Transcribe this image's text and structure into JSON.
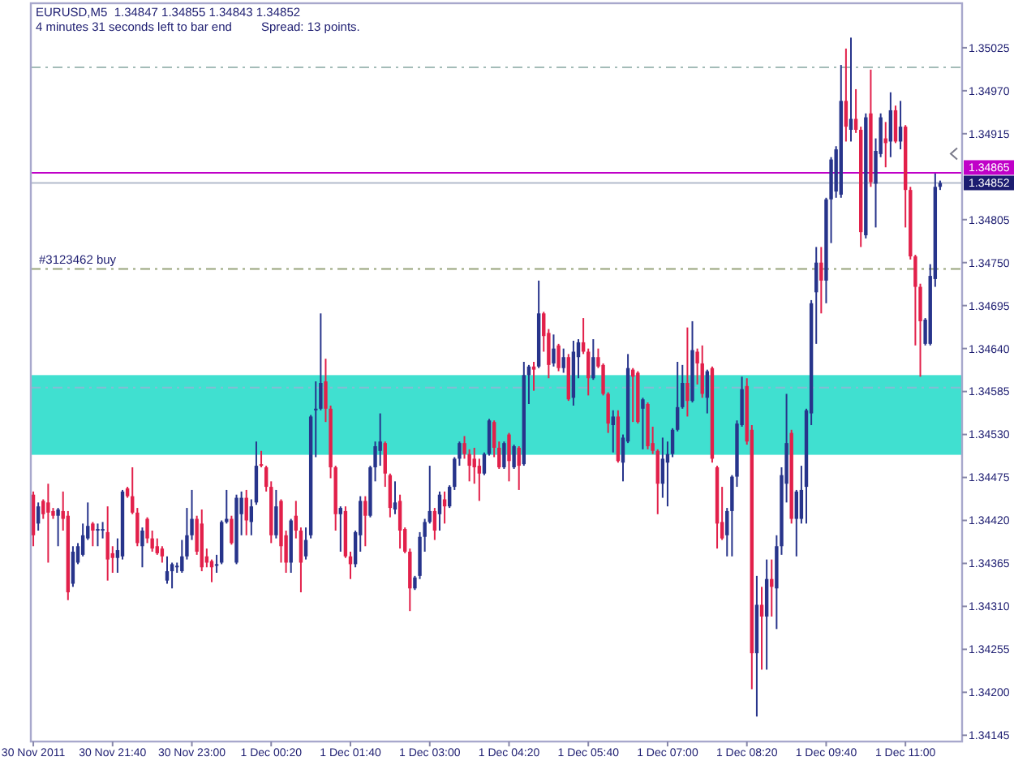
{
  "chart_data": {
    "type": "candlestick",
    "title": "EURUSD,M5  1.34847 1.34855 1.34843 1.34852",
    "annotations": [
      "4 minutes 31 seconds left to bar end",
      "Spread: 13 points."
    ],
    "categories": [
      "30 Nov 2011",
      null,
      null,
      null,
      null,
      null,
      null,
      null,
      null,
      null,
      null,
      null,
      null,
      null,
      null,
      null,
      "30 Nov 21:40",
      null,
      null,
      null,
      null,
      null,
      null,
      null,
      null,
      null,
      null,
      null,
      null,
      null,
      null,
      null,
      "30 Nov 23:00",
      null,
      null,
      null,
      null,
      null,
      null,
      null,
      null,
      null,
      null,
      null,
      null,
      null,
      null,
      null,
      "1 Dec 00:20",
      null,
      null,
      null,
      null,
      null,
      null,
      null,
      null,
      null,
      null,
      null,
      null,
      null,
      null,
      null,
      "1 Dec 01:40",
      null,
      null,
      null,
      null,
      null,
      null,
      null,
      null,
      null,
      null,
      null,
      null,
      null,
      null,
      null,
      "1 Dec 03:00",
      null,
      null,
      null,
      null,
      null,
      null,
      null,
      null,
      null,
      null,
      null,
      null,
      null,
      null,
      null,
      "1 Dec 04:20",
      null,
      null,
      null,
      null,
      null,
      null,
      null,
      null,
      null,
      null,
      null,
      null,
      null,
      null,
      null,
      "1 Dec 05:40",
      null,
      null,
      null,
      null,
      null,
      null,
      null,
      null,
      null,
      null,
      null,
      null,
      null,
      null,
      null,
      "1 Dec 07:00",
      null,
      null,
      null,
      null,
      null,
      null,
      null,
      null,
      null,
      null,
      null,
      null,
      null,
      null,
      null,
      "1 Dec 08:20",
      null,
      null,
      null,
      null,
      null,
      null,
      null,
      null,
      null,
      null,
      null,
      null,
      null,
      null,
      null,
      "1 Dec 09:40",
      null,
      null,
      null,
      null,
      null,
      null,
      null,
      null,
      null,
      null,
      null,
      null,
      null,
      null,
      null,
      "1 Dec 11:00",
      null,
      null,
      null,
      null,
      null,
      null,
      null
    ],
    "ohlc": [
      [
        1.34453,
        1.34457,
        1.34387,
        1.34401
      ],
      [
        1.34416,
        1.34443,
        1.34407,
        1.34438
      ],
      [
        1.34445,
        1.34447,
        1.34422,
        1.34428
      ],
      [
        1.34443,
        1.34467,
        1.34366,
        1.3443
      ],
      [
        1.34432,
        1.34436,
        1.34422,
        1.34426
      ],
      [
        1.34426,
        1.34436,
        1.34387,
        1.34434
      ],
      [
        1.34432,
        1.34457,
        1.34407,
        1.34422
      ],
      [
        1.34426,
        1.34432,
        1.34318,
        1.34328
      ],
      [
        1.34339,
        1.34387,
        1.34335,
        1.3438
      ],
      [
        1.34366,
        1.34391,
        1.34364,
        1.34387
      ],
      [
        1.34376,
        1.34416,
        1.34374,
        1.34401
      ],
      [
        1.34397,
        1.34443,
        1.34395,
        1.34413
      ],
      [
        1.34416,
        1.34418,
        1.34387,
        1.34407
      ],
      [
        1.34407,
        1.34416,
        1.34387,
        1.34409
      ],
      [
        1.34407,
        1.34418,
        1.34397,
        1.34409
      ],
      [
        1.34405,
        1.34438,
        1.34343,
        1.3437
      ],
      [
        1.34378,
        1.34387,
        1.34353,
        1.34372
      ],
      [
        1.34372,
        1.34397,
        1.34353,
        1.34382
      ],
      [
        1.34374,
        1.34459,
        1.3437,
        1.34457
      ],
      [
        1.34461,
        1.34463,
        1.34449,
        1.34451
      ],
      [
        1.34451,
        1.34488,
        1.34428,
        1.3443
      ],
      [
        1.3443,
        1.34436,
        1.34387,
        1.34391
      ],
      [
        1.34387,
        1.34411,
        1.3436,
        1.34407
      ],
      [
        1.34422,
        1.34424,
        1.34391,
        1.34397
      ],
      [
        1.34397,
        1.34407,
        1.3438,
        1.34384
      ],
      [
        1.34387,
        1.34397,
        1.34376,
        1.34378
      ],
      [
        1.34384,
        1.34387,
        1.34366,
        1.34374
      ],
      [
        1.34343,
        1.34374,
        1.34339,
        1.34355
      ],
      [
        1.34355,
        1.34366,
        1.34333,
        1.34364
      ],
      [
        1.3436,
        1.34366,
        1.34353,
        1.34362
      ],
      [
        1.34355,
        1.34395,
        1.34353,
        1.34374
      ],
      [
        1.34374,
        1.34436,
        1.3437,
        1.34401
      ],
      [
        1.34401,
        1.34459,
        1.34395,
        1.34422
      ],
      [
        1.34422,
        1.34426,
        1.34376,
        1.3438
      ],
      [
        1.34416,
        1.34434,
        1.34355,
        1.3436
      ],
      [
        1.34374,
        1.34384,
        1.3436,
        1.34366
      ],
      [
        1.34368,
        1.3437,
        1.34341,
        1.3436
      ],
      [
        1.34362,
        1.34376,
        1.34353,
        1.34364
      ],
      [
        1.34366,
        1.3442,
        1.34364,
        1.34418
      ],
      [
        1.34418,
        1.34459,
        1.34416,
        1.34422
      ],
      [
        1.34422,
        1.34426,
        1.34389,
        1.34391
      ],
      [
        1.34366,
        1.34453,
        1.34364,
        1.34449
      ],
      [
        1.34428,
        1.34457,
        1.34401,
        1.34449
      ],
      [
        1.34449,
        1.34459,
        1.34401,
        1.3442
      ],
      [
        1.34418,
        1.34447,
        1.34401,
        1.34438
      ],
      [
        1.34443,
        1.34521,
        1.3444,
        1.3449
      ],
      [
        1.34492,
        1.34509,
        1.34488,
        1.3449
      ],
      [
        1.34488,
        1.3449,
        1.34457,
        1.34463
      ],
      [
        1.34463,
        1.3447,
        1.34391,
        1.34401
      ],
      [
        1.34401,
        1.34459,
        1.34397,
        1.34438
      ],
      [
        1.34445,
        1.34447,
        1.34366,
        1.34387
      ],
      [
        1.34401,
        1.34407,
        1.34353,
        1.34366
      ],
      [
        1.34366,
        1.34422,
        1.34353,
        1.3442
      ],
      [
        1.34426,
        1.34445,
        1.34397,
        1.34407
      ],
      [
        1.34407,
        1.34411,
        1.34328,
        1.34366
      ],
      [
        1.34374,
        1.34411,
        1.3437,
        1.34395
      ],
      [
        1.34401,
        1.34555,
        1.34397,
        1.34553
      ],
      [
        1.34561,
        1.34598,
        1.34501,
        1.34563
      ],
      [
        1.34563,
        1.34685,
        1.34561,
        1.34596
      ],
      [
        1.34598,
        1.34627,
        1.34546,
        1.34563
      ],
      [
        1.34563,
        1.34567,
        1.34474,
        1.34488
      ],
      [
        1.34488,
        1.3449,
        1.34407,
        1.34428
      ],
      [
        1.34428,
        1.34438,
        1.3438,
        1.34436
      ],
      [
        1.34432,
        1.34438,
        1.34372,
        1.34374
      ],
      [
        1.34374,
        1.3438,
        1.34345,
        1.34364
      ],
      [
        1.34364,
        1.34407,
        1.3436,
        1.34405
      ],
      [
        1.34401,
        1.34451,
        1.3438,
        1.34445
      ],
      [
        1.34445,
        1.34451,
        1.34387,
        1.34426
      ],
      [
        1.34426,
        1.3449,
        1.34424,
        1.34488
      ],
      [
        1.34488,
        1.34521,
        1.3447,
        1.34515
      ],
      [
        1.34509,
        1.34557,
        1.3449,
        1.34521
      ],
      [
        1.34519,
        1.34521,
        1.34463,
        1.3448
      ],
      [
        1.34478,
        1.3448,
        1.34424,
        1.34436
      ],
      [
        1.34434,
        1.3447,
        1.34428,
        1.34443
      ],
      [
        1.34445,
        1.34453,
        1.34384,
        1.34407
      ],
      [
        1.34409,
        1.34411,
        1.34378,
        1.3438
      ],
      [
        1.3438,
        1.34384,
        1.34304,
        1.34333
      ],
      [
        1.34333,
        1.34349,
        1.34331,
        1.34347
      ],
      [
        1.34349,
        1.34405,
        1.34345,
        1.34399
      ],
      [
        1.34399,
        1.34422,
        1.3438,
        1.34418
      ],
      [
        1.34418,
        1.3449,
        1.34416,
        1.34432
      ],
      [
        1.34432,
        1.34436,
        1.34395,
        1.34407
      ],
      [
        1.34428,
        1.34457,
        1.34407,
        1.34453
      ],
      [
        1.34447,
        1.34457,
        1.34416,
        1.34438
      ],
      [
        1.34438,
        1.34465,
        1.34436,
        1.34463
      ],
      [
        1.34463,
        1.34501,
        1.34459,
        1.34499
      ],
      [
        1.34499,
        1.34521,
        1.3449,
        1.34519
      ],
      [
        1.34519,
        1.34528,
        1.34499,
        1.34505
      ],
      [
        1.34505,
        1.34511,
        1.3447,
        1.3449
      ],
      [
        1.34499,
        1.34513,
        1.34467,
        1.34488
      ],
      [
        1.3449,
        1.34499,
        1.34445,
        1.3448
      ],
      [
        1.3448,
        1.34507,
        1.34478,
        1.34505
      ],
      [
        1.34505,
        1.3455,
        1.34503,
        1.34548
      ],
      [
        1.34546,
        1.34548,
        1.34501,
        1.34513
      ],
      [
        1.34513,
        1.34521,
        1.34486,
        1.34488
      ],
      [
        1.34488,
        1.34521,
        1.34486,
        1.34519
      ],
      [
        1.3453,
        1.34532,
        1.3447,
        1.34496
      ],
      [
        1.34488,
        1.34517,
        1.34486,
        1.34515
      ],
      [
        1.34513,
        1.34515,
        1.34459,
        1.3449
      ],
      [
        1.34492,
        1.34623,
        1.3449,
        1.34606
      ],
      [
        1.34606,
        1.34619,
        1.34569,
        1.34617
      ],
      [
        1.34617,
        1.34623,
        1.34586,
        1.34613
      ],
      [
        1.34617,
        1.34727,
        1.34615,
        1.34685
      ],
      [
        1.34685,
        1.34687,
        1.34636,
        1.34656
      ],
      [
        1.3466,
        1.34665,
        1.34602,
        1.34619
      ],
      [
        1.34621,
        1.34658,
        1.34617,
        1.3464
      ],
      [
        1.34644,
        1.34646,
        1.34611,
        1.34615
      ],
      [
        1.34615,
        1.3464,
        1.34609,
        1.34629
      ],
      [
        1.34629,
        1.34633,
        1.34573,
        1.34575
      ],
      [
        1.34577,
        1.3465,
        1.34567,
        1.34636
      ],
      [
        1.34629,
        1.34652,
        1.34602,
        1.34648
      ],
      [
        1.34648,
        1.34679,
        1.34633,
        1.34636
      ],
      [
        1.34636,
        1.3464,
        1.3458,
        1.34602
      ],
      [
        1.34602,
        1.34652,
        1.346,
        1.34629
      ],
      [
        1.34629,
        1.3464,
        1.34615,
        1.34617
      ],
      [
        1.34619,
        1.34621,
        1.3458,
        1.34582
      ],
      [
        1.34582,
        1.34584,
        1.34532,
        1.34544
      ],
      [
        1.34542,
        1.34561,
        1.34507,
        1.34553
      ],
      [
        1.34553,
        1.34561,
        1.34494,
        1.34496
      ],
      [
        1.34494,
        1.3453,
        1.3447,
        1.34526
      ],
      [
        1.34521,
        1.34633,
        1.34519,
        1.34615
      ],
      [
        1.34613,
        1.34615,
        1.34546,
        1.34604
      ],
      [
        1.34609,
        1.34611,
        1.34544,
        1.34546
      ],
      [
        1.34563,
        1.34577,
        1.34511,
        1.34575
      ],
      [
        1.34569,
        1.34571,
        1.34511,
        1.34515
      ],
      [
        1.34519,
        1.3454,
        1.34505,
        1.34509
      ],
      [
        1.34509,
        1.34511,
        1.34428,
        1.34467
      ],
      [
        1.34467,
        1.34526,
        1.34449,
        1.34499
      ],
      [
        1.34494,
        1.34521,
        1.34438,
        1.34505
      ],
      [
        1.34505,
        1.34538,
        1.34501,
        1.34536
      ],
      [
        1.34536,
        1.34623,
        1.34534,
        1.34565
      ],
      [
        1.34565,
        1.34619,
        1.34563,
        1.34596
      ],
      [
        1.34596,
        1.34667,
        1.34553,
        1.34573
      ],
      [
        1.34573,
        1.34675,
        1.34571,
        1.34638
      ],
      [
        1.34636,
        1.3464,
        1.34594,
        1.34621
      ],
      [
        1.34621,
        1.34644,
        1.34577,
        1.34582
      ],
      [
        1.34577,
        1.34613,
        1.34557,
        1.34611
      ],
      [
        1.34615,
        1.34617,
        1.34494,
        1.34499
      ],
      [
        1.34488,
        1.3449,
        1.34384,
        1.34416
      ],
      [
        1.34418,
        1.34463,
        1.34395,
        1.34397
      ],
      [
        1.34401,
        1.34436,
        1.34374,
        1.34432
      ],
      [
        1.34432,
        1.34478,
        1.34374,
        1.34476
      ],
      [
        1.34476,
        1.34548,
        1.34463,
        1.34544
      ],
      [
        1.34542,
        1.34604,
        1.3454,
        1.34588
      ],
      [
        1.34592,
        1.34602,
        1.34517,
        1.34521
      ],
      [
        1.34536,
        1.34542,
        1.34204,
        1.3425
      ],
      [
        1.3425,
        1.34349,
        1.34169,
        1.34312
      ],
      [
        1.34312,
        1.34335,
        1.34229,
        1.34297
      ],
      [
        1.34297,
        1.3437,
        1.34229,
        1.34345
      ],
      [
        1.34345,
        1.3437,
        1.34297,
        1.34335
      ],
      [
        1.34333,
        1.34401,
        1.34281,
        1.34387
      ],
      [
        1.34387,
        1.34488,
        1.34376,
        1.34478
      ],
      [
        1.34467,
        1.34582,
        1.34443,
        1.34519
      ],
      [
        1.34532,
        1.34536,
        1.34416,
        1.34422
      ],
      [
        1.34422,
        1.34459,
        1.34374,
        1.34457
      ],
      [
        1.34422,
        1.3449,
        1.34416,
        1.34459
      ],
      [
        1.34463,
        1.34563,
        1.34416,
        1.34561
      ],
      [
        1.34557,
        1.34702,
        1.34542,
        1.34698
      ],
      [
        1.34712,
        1.3477,
        1.34646,
        1.3475
      ],
      [
        1.3475,
        1.3477,
        1.34685,
        1.34727
      ],
      [
        1.34727,
        1.34833,
        1.34698,
        1.34831
      ],
      [
        1.34831,
        1.34885,
        1.34775,
        1.34882
      ],
      [
        1.34841,
        1.34899,
        1.34833,
        1.34895
      ],
      [
        1.34837,
        1.35003,
        1.34833,
        1.34957
      ],
      [
        1.34957,
        1.35024,
        1.34905,
        1.34924
      ],
      [
        1.3492,
        1.35038,
        1.34905,
        1.34934
      ],
      [
        1.34934,
        1.34972,
        1.34916,
        1.3492
      ],
      [
        1.3492,
        1.34924,
        1.3477,
        1.34789
      ],
      [
        1.34785,
        1.34941,
        1.34781,
        1.34936
      ],
      [
        1.34941,
        1.34997,
        1.34847,
        1.34853
      ],
      [
        1.34851,
        1.34909,
        1.34795,
        1.34893
      ],
      [
        1.34889,
        1.34941,
        1.34885,
        1.34936
      ],
      [
        1.34909,
        1.3493,
        1.34872,
        1.34903
      ],
      [
        1.34905,
        1.34968,
        1.34885,
        1.34945
      ],
      [
        1.34945,
        1.34951,
        1.34903,
        1.34905
      ],
      [
        1.34905,
        1.34957,
        1.34895,
        1.34924
      ],
      [
        1.34924,
        1.34926,
        1.34795,
        1.34843
      ],
      [
        1.34843,
        1.34847,
        1.34754,
        1.34758
      ],
      [
        1.34758,
        1.3476,
        1.34644,
        1.34719
      ],
      [
        1.34719,
        1.34723,
        1.34604,
        1.34675
      ],
      [
        1.34646,
        1.34679,
        1.34644,
        1.34677
      ],
      [
        1.34646,
        1.34748,
        1.34644,
        1.34733
      ],
      [
        1.34729,
        1.34864,
        1.34719,
        1.34847
      ],
      [
        1.34847,
        1.34855,
        1.34843,
        1.34852
      ]
    ],
    "colors": [
      "#e2204a",
      "#27348b",
      "#e2204a",
      "#e2204a",
      "#e2204a",
      "#27348b",
      "#e2204a",
      "#e2204a",
      "#27348b",
      "#27348b",
      "#27348b",
      "#27348b",
      "#e2204a",
      "#27348b",
      "#27348b",
      "#e2204a",
      "#e2204a",
      "#27348b",
      "#27348b",
      "#e2204a",
      "#e2204a",
      "#e2204a",
      "#27348b",
      "#e2204a",
      "#e2204a",
      "#e2204a",
      "#e2204a",
      "#27348b",
      "#27348b",
      "#27348b",
      "#27348b",
      "#27348b",
      "#27348b",
      "#e2204a",
      "#e2204a",
      "#e2204a",
      "#e2204a",
      "#27348b",
      "#27348b",
      "#27348b",
      "#e2204a",
      "#27348b",
      "#27348b",
      "#e2204a",
      "#27348b",
      "#27348b",
      "#e2204a",
      "#e2204a",
      "#e2204a",
      "#27348b",
      "#e2204a",
      "#e2204a",
      "#27348b",
      "#e2204a",
      "#e2204a",
      "#27348b",
      "#27348b",
      "#27348b",
      "#27348b",
      "#e2204a",
      "#e2204a",
      "#e2204a",
      "#27348b",
      "#e2204a",
      "#e2204a",
      "#27348b",
      "#27348b",
      "#e2204a",
      "#27348b",
      "#27348b",
      "#27348b",
      "#e2204a",
      "#e2204a",
      "#27348b",
      "#e2204a",
      "#e2204a",
      "#e2204a",
      "#27348b",
      "#27348b",
      "#27348b",
      "#27348b",
      "#e2204a",
      "#27348b",
      "#e2204a",
      "#27348b",
      "#27348b",
      "#27348b",
      "#e2204a",
      "#e2204a",
      "#e2204a",
      "#e2204a",
      "#27348b",
      "#27348b",
      "#e2204a",
      "#e2204a",
      "#27348b",
      "#e2204a",
      "#27348b",
      "#e2204a",
      "#27348b",
      "#27348b",
      "#e2204a",
      "#27348b",
      "#e2204a",
      "#e2204a",
      "#27348b",
      "#e2204a",
      "#27348b",
      "#e2204a",
      "#27348b",
      "#27348b",
      "#e2204a",
      "#e2204a",
      "#27348b",
      "#e2204a",
      "#e2204a",
      "#e2204a",
      "#27348b",
      "#e2204a",
      "#27348b",
      "#27348b",
      "#e2204a",
      "#e2204a",
      "#27348b",
      "#e2204a",
      "#e2204a",
      "#e2204a",
      "#27348b",
      "#27348b",
      "#27348b",
      "#27348b",
      "#27348b",
      "#e2204a",
      "#27348b",
      "#e2204a",
      "#e2204a",
      "#27348b",
      "#e2204a",
      "#e2204a",
      "#e2204a",
      "#27348b",
      "#27348b",
      "#27348b",
      "#27348b",
      "#e2204a",
      "#e2204a",
      "#27348b",
      "#e2204a",
      "#27348b",
      "#e2204a",
      "#27348b",
      "#27348b",
      "#27348b",
      "#e2204a",
      "#27348b",
      "#27348b",
      "#27348b",
      "#27348b",
      "#27348b",
      "#e2204a",
      "#27348b",
      "#27348b",
      "#27348b",
      "#27348b",
      "#e2204a",
      "#27348b",
      "#e2204a",
      "#e2204a",
      "#27348b",
      "#e2204a",
      "#27348b",
      "#27348b",
      "#e2204a",
      "#27348b",
      "#e2204a",
      "#27348b",
      "#e2204a",
      "#e2204a",
      "#e2204a",
      "#e2204a",
      "#27348b",
      "#27348b",
      "#27348b",
      "#27348b"
    ],
    "ylim": [
      1.34137,
      1.35082
    ],
    "yticks": [
      1.35025,
      {
        "value": 1.3497,
        "label": "1.34970"
      },
      1.34915,
      1.34805,
      {
        "value": 1.3475,
        "label": "1.34750"
      },
      1.34695,
      {
        "value": 1.3464,
        "label": "1.34640"
      },
      1.34585,
      {
        "value": 1.3453,
        "label": "1.34530"
      },
      1.34475,
      {
        "value": 1.3442,
        "label": "1.34420"
      },
      1.34365,
      {
        "value": 1.3431,
        "label": "1.34310"
      },
      1.34255,
      {
        "value": 1.342,
        "label": "1.34200"
      },
      1.34145
    ],
    "ref_lines": [
      {
        "axis": "y",
        "value": 1.35,
        "color": "#a4bcb8",
        "line_style": "dashed"
      },
      {
        "axis": "y",
        "value": 1.34865,
        "label": "1.34865",
        "color": "#c000c8",
        "line_style": "solid"
      },
      {
        "axis": "y",
        "value": 1.34852,
        "label": "1.34852",
        "color": "#b4bccc",
        "line_style": "solid"
      },
      {
        "axis": "y",
        "value": 1.34742,
        "label": "#3123462 buy",
        "color": "#98a47c",
        "line_style": "dashed"
      },
      {
        "axis": "y",
        "value": 1.3459,
        "color": "#84bcd4",
        "line_style": "dashed"
      }
    ],
    "bands": [
      {
        "axis": "y",
        "from": 1.34504,
        "to": 1.34606,
        "color": "#40e0d0"
      }
    ]
  }
}
